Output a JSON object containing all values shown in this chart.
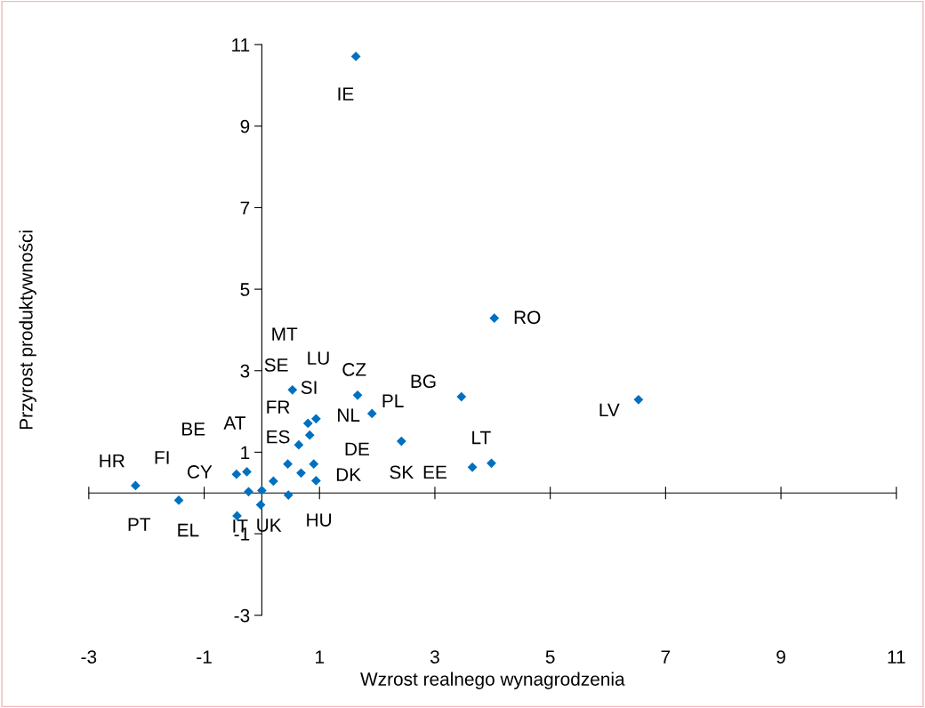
{
  "chart_data": {
    "type": "scatter",
    "xlabel": "Wzrost realnego wynagrodzenia",
    "ylabel": "Przyrost produktywności",
    "xlim": [
      -3,
      11
    ],
    "ylim": [
      -3,
      11
    ],
    "xticks": [
      -3,
      -1,
      1,
      3,
      5,
      7,
      9,
      11
    ],
    "yticks": [
      -3,
      -1,
      1,
      3,
      5,
      7,
      9,
      11
    ],
    "grid": false,
    "legend": false,
    "marker": "diamond",
    "series": [
      {
        "color": "#0070c0",
        "x": [
          1.63,
          4.03,
          6.53,
          3.46,
          1.66,
          1.91,
          0.53,
          0.94,
          0.8,
          0.83,
          0.64,
          2.42,
          3.65,
          3.98,
          -2.19,
          -1.44,
          -0.44,
          -0.26,
          -0.23,
          0.0,
          -0.02,
          -0.43,
          0.2,
          0.46,
          0.45,
          0.68,
          0.9,
          0.94
        ],
        "values": [
          10.71,
          4.29,
          2.29,
          2.36,
          2.4,
          1.95,
          2.53,
          1.82,
          1.71,
          1.42,
          1.18,
          1.27,
          0.63,
          0.73,
          0.18,
          -0.18,
          0.46,
          0.52,
          0.03,
          0.06,
          -0.29,
          -0.56,
          0.29,
          -0.05,
          0.71,
          0.49,
          0.71,
          0.3
        ]
      }
    ],
    "annotations": [
      "IE",
      "RO",
      "LV",
      "BG",
      "PL",
      "CZ",
      "LU",
      "MT",
      "SE",
      "SI",
      "FR",
      "NL",
      "AT",
      "BE",
      "ES",
      "DE",
      "LT",
      "HR",
      "FI",
      "CY",
      "DK",
      "SK",
      "EE",
      "PT",
      "EL",
      "IT",
      "UK",
      "HU"
    ]
  }
}
